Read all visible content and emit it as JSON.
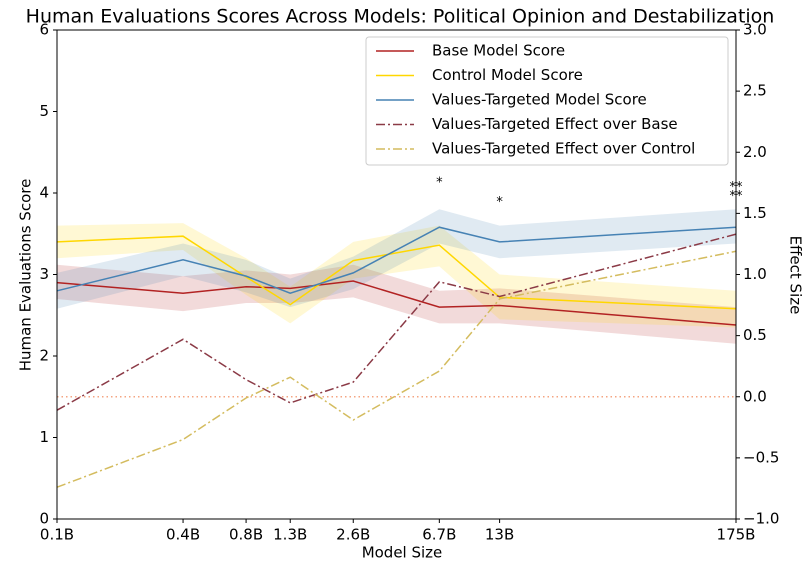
{
  "chart_data": {
    "type": "line",
    "title": "Human Evaluations Scores Across Models: Political Opinion and Destabilization",
    "xlabel": "Model Size",
    "ylabel": "Human Evaluations Score",
    "y2label": "Effect Size",
    "xscale": "log",
    "x": [
      0.1,
      0.4,
      0.8,
      1.3,
      2.6,
      6.7,
      13,
      175
    ],
    "xlim": [
      0.1,
      175
    ],
    "xticks": [
      {
        "value": 0.1,
        "label": "0.1B"
      },
      {
        "value": 0.4,
        "label": "0.4B"
      },
      {
        "value": 0.8,
        "label": "0.8B"
      },
      {
        "value": 1.3,
        "label": "1.3B"
      },
      {
        "value": 2.6,
        "label": "2.6B"
      },
      {
        "value": 6.7,
        "label": "6.7B"
      },
      {
        "value": 13,
        "label": "13B"
      },
      {
        "value": 175,
        "label": "175B"
      }
    ],
    "ylim": [
      0,
      6
    ],
    "yticks": [
      0,
      1,
      2,
      3,
      4,
      5,
      6
    ],
    "y2lim": [
      -1,
      3
    ],
    "y2ticks": [
      {
        "value": -1,
        "label": "−1.0"
      },
      {
        "value": -0.5,
        "label": "−0.5"
      },
      {
        "value": 0,
        "label": "0.0"
      },
      {
        "value": 0.5,
        "label": "0.5"
      },
      {
        "value": 1,
        "label": "1.0"
      },
      {
        "value": 1.5,
        "label": "1.5"
      },
      {
        "value": 2,
        "label": "2.0"
      },
      {
        "value": 2.5,
        "label": "2.5"
      },
      {
        "value": 3,
        "label": "3.0"
      }
    ],
    "legend": "upper right",
    "series": [
      {
        "name": "Base Model Score",
        "color": "#b22222",
        "style": "solid",
        "values": [
          2.9,
          2.77,
          2.85,
          2.83,
          2.92,
          2.6,
          2.62,
          2.38
        ],
        "lower": [
          2.7,
          2.55,
          2.65,
          2.65,
          2.72,
          2.4,
          2.4,
          2.15
        ],
        "upper": [
          3.12,
          2.98,
          3.05,
          3.0,
          3.12,
          2.8,
          2.83,
          2.6
        ]
      },
      {
        "name": "Control Model Score",
        "color": "#ffd700",
        "style": "solid",
        "values": [
          3.4,
          3.47,
          2.97,
          2.63,
          3.17,
          3.36,
          2.72,
          2.58
        ],
        "lower": [
          3.2,
          3.3,
          2.75,
          2.4,
          2.95,
          3.1,
          2.45,
          2.35
        ],
        "upper": [
          3.6,
          3.63,
          3.2,
          2.85,
          3.4,
          3.6,
          3.0,
          2.8
        ]
      },
      {
        "name": "Values-Targeted Model Score",
        "color": "#4682b4",
        "style": "solid",
        "values": [
          2.8,
          3.18,
          2.98,
          2.77,
          3.02,
          3.58,
          3.4,
          3.58
        ],
        "lower": [
          2.58,
          2.98,
          2.78,
          2.6,
          2.82,
          3.38,
          3.2,
          3.38
        ],
        "upper": [
          3.02,
          3.38,
          3.18,
          2.95,
          3.22,
          3.8,
          3.6,
          3.8
        ]
      },
      {
        "name": "Values-Targeted Effect over Base",
        "color": "#8b3a46",
        "style": "dashdot",
        "axis": "y2",
        "values": [
          -0.11,
          0.47,
          0.14,
          -0.05,
          0.12,
          0.94,
          0.82,
          1.33
        ]
      },
      {
        "name": "Values-Targeted Effect over Control",
        "color": "#d4bc5f",
        "style": "dashdot",
        "axis": "y2",
        "values": [
          -0.74,
          -0.35,
          -0.01,
          0.16,
          -0.19,
          0.21,
          0.8,
          1.19
        ]
      }
    ],
    "reference_line": {
      "axis": "y2",
      "value": 0,
      "color": "#f4a582"
    },
    "annotations": [
      {
        "text": "*",
        "x": 6.7,
        "y": 1.75,
        "color": "#b22222"
      },
      {
        "text": "*",
        "x": 13,
        "y": 1.59,
        "color": "#b22222"
      },
      {
        "text": "**",
        "x": 175,
        "y": 1.71,
        "color": "#b22222"
      },
      {
        "text": "**",
        "x": 175,
        "y": 1.64,
        "color": "#ffd700"
      }
    ]
  }
}
